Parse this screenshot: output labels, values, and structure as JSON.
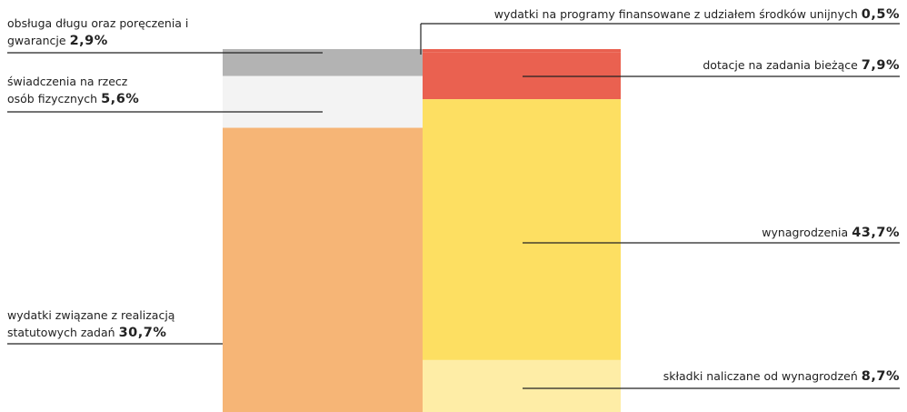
{
  "chart_data": {
    "type": "split_columns",
    "columns": [
      {
        "segments": [
          {
            "name": "obsługa długu oraz poręczenia i gwarancje",
            "value": 2.9,
            "value_label": "2,9%",
            "color": "#b3b3b3"
          },
          {
            "name": "świadczenia na rzecz osób fizycznych",
            "value": 5.6,
            "value_label": "5,6%",
            "color": "#f3f3f3"
          },
          {
            "name": "wydatki związane z realizacją statutowych zadań",
            "value": 30.7,
            "value_label": "30,7%",
            "color": "#f6b576"
          }
        ]
      },
      {
        "segments": [
          {
            "name": "wydatki na programy finansowane z udziałem środków unijnych",
            "value": 0.5,
            "value_label": "0,5%",
            "color": "#e9604f"
          },
          {
            "name": "dotacje na zadania bieżące",
            "value": 7.9,
            "value_label": "7,9%",
            "color": "#ea6150"
          },
          {
            "name": "wynagrodzenia",
            "value": 43.7,
            "value_label": "43,7%",
            "color": "#fddf62"
          },
          {
            "name": "składki naliczane od wynagrodzeń",
            "value": 8.7,
            "value_label": "8,7%",
            "color": "#feeda6"
          }
        ]
      }
    ]
  }
}
